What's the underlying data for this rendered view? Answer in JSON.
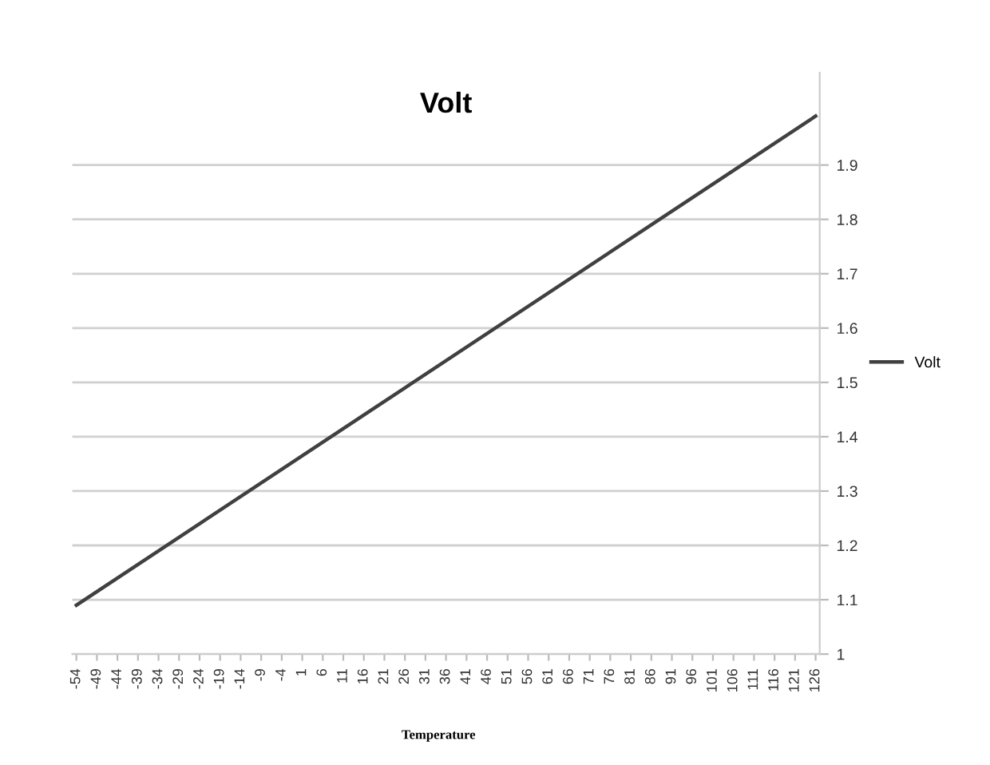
{
  "chart_data": {
    "type": "line",
    "title": "Volt",
    "xlabel": "Temperature",
    "x": [
      -54,
      126
    ],
    "series": [
      {
        "name": "Volt",
        "color": "#404040",
        "values": [
          1.09,
          1.99
        ]
      }
    ],
    "xlim": [
      -55,
      127
    ],
    "xticks": [
      -54,
      -49,
      -44,
      -39,
      -34,
      -29,
      -24,
      -19,
      -14,
      -9,
      -4,
      1,
      6,
      11,
      16,
      21,
      26,
      31,
      36,
      41,
      46,
      51,
      56,
      61,
      66,
      71,
      76,
      81,
      86,
      91,
      96,
      101,
      106,
      111,
      116,
      121,
      126
    ],
    "ylim": [
      1,
      2.07
    ],
    "yticks": [
      1,
      1.1,
      1.2,
      1.3,
      1.4,
      1.5,
      1.6,
      1.7,
      1.8,
      1.9
    ],
    "grid": "y",
    "legend": "right",
    "marker": "none",
    "line_style": "solid"
  }
}
